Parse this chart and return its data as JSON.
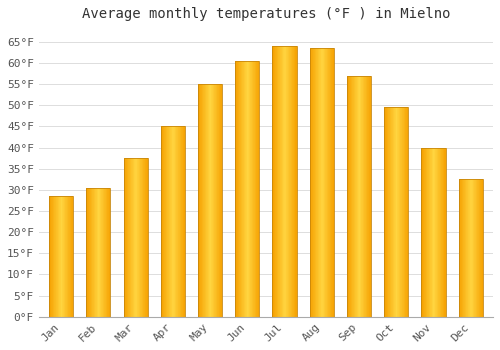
{
  "title": "Average monthly temperatures (°F ) in Mielno",
  "months": [
    "Jan",
    "Feb",
    "Mar",
    "Apr",
    "May",
    "Jun",
    "Jul",
    "Aug",
    "Sep",
    "Oct",
    "Nov",
    "Dec"
  ],
  "values": [
    28.5,
    30.5,
    37.5,
    45.0,
    55.0,
    60.5,
    64.0,
    63.5,
    57.0,
    49.5,
    40.0,
    32.5
  ],
  "bar_color_center": "#FFD04A",
  "bar_color_edge": "#F5A000",
  "background_color": "#FFFFFF",
  "plot_bg_color": "#FFFFFF",
  "grid_color": "#DDDDDD",
  "ylim": [
    0,
    68
  ],
  "yticks": [
    0,
    5,
    10,
    15,
    20,
    25,
    30,
    35,
    40,
    45,
    50,
    55,
    60,
    65
  ],
  "title_fontsize": 10,
  "tick_fontsize": 8,
  "bar_width": 0.65
}
